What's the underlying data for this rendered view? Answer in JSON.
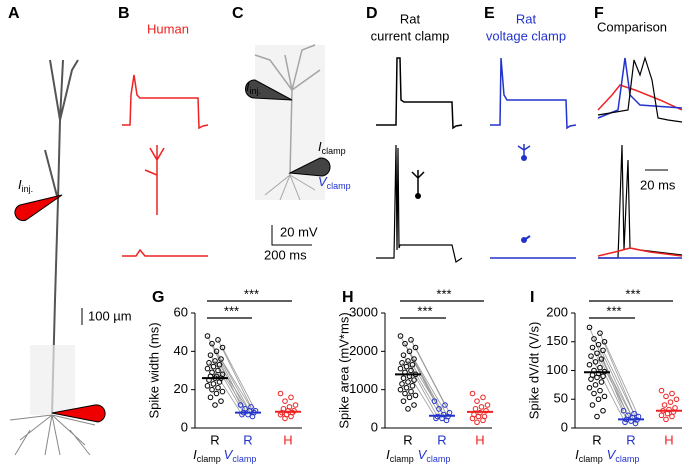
{
  "figure": {
    "panel_labels": [
      "A",
      "B",
      "C",
      "D",
      "E",
      "F",
      "G",
      "H",
      "I"
    ],
    "human_title": "Human",
    "rat_cc_title": [
      "Rat",
      "current clamp"
    ],
    "rat_vc_title": [
      "Rat",
      "voltage clamp"
    ],
    "comparison_title": "Comparison",
    "i_inj": {
      "main": "I",
      "sub": "inj."
    },
    "i_clamp": {
      "main": "I",
      "sub": "clamp"
    },
    "v_clamp": {
      "main": "V",
      "sub": "clamp"
    },
    "scale_a": "100 µm",
    "scale_c_v": "20 mV",
    "scale_c_t": "200 ms",
    "scale_f": "20 ms"
  },
  "chart_data": [
    {
      "type": "scatter",
      "ylabel": "Spike width (ms)",
      "categories": [
        "R",
        "R",
        "H"
      ],
      "category_sublabels": [
        {
          "main": "I",
          "sub": "clamp"
        },
        {
          "main": "V",
          "sub": "clamp"
        },
        null
      ],
      "series": [
        {
          "color": "#000000",
          "values": [
            48,
            46,
            44,
            42,
            40,
            38,
            36,
            35,
            34,
            33,
            32,
            31,
            30,
            29,
            28,
            27,
            27,
            26,
            26,
            25,
            24,
            23,
            22,
            21,
            20,
            19,
            18,
            16,
            14,
            12
          ]
        },
        {
          "color": "#2233cc",
          "values": [
            12,
            11,
            10,
            9,
            9,
            8,
            8,
            7,
            7,
            6
          ]
        },
        {
          "color": "#ee2222",
          "values": [
            18,
            16,
            14,
            12,
            11,
            10,
            9,
            9,
            8,
            8,
            7,
            7,
            6,
            5
          ]
        }
      ],
      "means": [
        26,
        8,
        8.5
      ],
      "significance": [
        "***",
        "***"
      ],
      "ylim": [
        0,
        60
      ],
      "yticks": [
        0,
        20,
        40,
        60
      ]
    },
    {
      "type": "scatter",
      "ylabel": "Spike area (mV*ms)",
      "categories": [
        "R",
        "R",
        "H"
      ],
      "category_sublabels": [
        {
          "main": "I",
          "sub": "clamp"
        },
        {
          "main": "V",
          "sub": "clamp"
        },
        null
      ],
      "series": [
        {
          "color": "#000000",
          "values": [
            2400,
            2300,
            2200,
            2100,
            2000,
            1900,
            1800,
            1750,
            1700,
            1650,
            1600,
            1550,
            1500,
            1450,
            1400,
            1350,
            1300,
            1250,
            1200,
            1150,
            1100,
            1050,
            1000,
            950,
            900,
            850,
            800,
            700,
            600,
            500
          ]
        },
        {
          "color": "#2233cc",
          "values": [
            700,
            600,
            500,
            400,
            350,
            300,
            300,
            250,
            250,
            200
          ]
        },
        {
          "color": "#ee2222",
          "values": [
            900,
            800,
            700,
            600,
            550,
            500,
            450,
            400,
            350,
            300,
            300,
            250,
            200,
            150
          ]
        }
      ],
      "means": [
        1400,
        320,
        420
      ],
      "significance": [
        "***",
        "***"
      ],
      "ylim": [
        0,
        3000
      ],
      "yticks": [
        0,
        1000,
        2000,
        3000
      ]
    },
    {
      "type": "scatter",
      "ylabel": "Spike dV/dt (V/s)",
      "categories": [
        "R",
        "R",
        "H"
      ],
      "category_sublabels": [
        {
          "main": "I",
          "sub": "clamp"
        },
        {
          "main": "V",
          "sub": "clamp"
        },
        null
      ],
      "series": [
        {
          "color": "#000000",
          "values": [
            175,
            165,
            155,
            150,
            145,
            140,
            135,
            130,
            125,
            120,
            115,
            110,
            105,
            100,
            98,
            95,
            92,
            90,
            88,
            85,
            80,
            75,
            70,
            65,
            60,
            55,
            50,
            40,
            30,
            20
          ]
        },
        {
          "color": "#2233cc",
          "values": [
            30,
            25,
            22,
            20,
            18,
            15,
            14,
            12,
            10,
            8
          ]
        },
        {
          "color": "#ee2222",
          "values": [
            65,
            60,
            55,
            50,
            45,
            40,
            35,
            32,
            30,
            28,
            25,
            22,
            20,
            15
          ]
        }
      ],
      "means": [
        97,
        15,
        30
      ],
      "significance": [
        "***",
        "***"
      ],
      "ylim": [
        0,
        200
      ],
      "yticks": [
        0,
        50,
        100,
        150,
        200
      ]
    }
  ]
}
